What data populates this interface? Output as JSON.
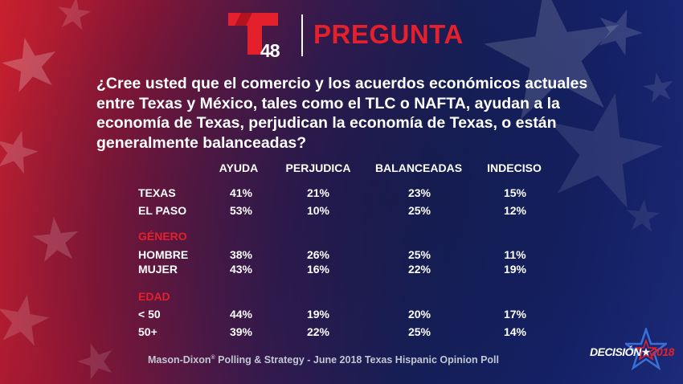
{
  "header": {
    "logo_number": "48",
    "title": "PREGUNTA"
  },
  "question": "¿Cree usted que el comercio y los acuerdos económicos actuales entre Texas y México, tales como el TLC o NAFTA, ayudan a la economía de Texas, perjudican la economía de Texas, o están generalmente balanceadas?",
  "table": {
    "columns": [
      "AYUDA",
      "PERJUDICA",
      "BALANCEADAS",
      "INDECISO"
    ],
    "rows": [
      {
        "label": "TEXAS",
        "values": [
          "41%",
          "21%",
          "23%",
          "15%"
        ]
      },
      {
        "label": "EL PASO",
        "values": [
          "53%",
          "10%",
          "25%",
          "12%"
        ]
      },
      {
        "label": "HOMBRE",
        "values": [
          "38%",
          "26%",
          "25%",
          "11%"
        ]
      },
      {
        "label": "MUJER",
        "values": [
          "43%",
          "16%",
          "22%",
          "19%"
        ]
      },
      {
        "label": "< 50",
        "values": [
          "44%",
          "19%",
          "20%",
          "17%"
        ]
      },
      {
        "label": "50+",
        "values": [
          "39%",
          "22%",
          "25%",
          "14%"
        ]
      }
    ],
    "groups": [
      "GÉNERO",
      "EDAD"
    ]
  },
  "source": {
    "prefix": "Mason-Dixon",
    "reg_mark": "®",
    "suffix": " Polling & Strategy - June 2018 Texas Hispanic Opinion Poll"
  },
  "badge": {
    "word": "DECISIÓN",
    "star": "★",
    "year": "2018"
  },
  "colors": {
    "accent_red": "#e3202b",
    "background_blue": "#14226a",
    "background_red": "#c8202e"
  }
}
